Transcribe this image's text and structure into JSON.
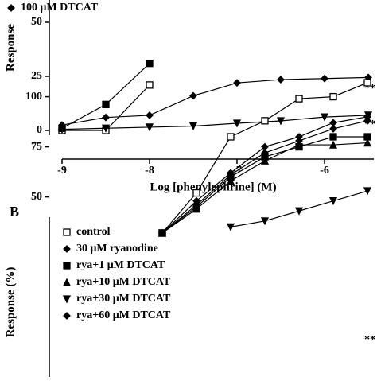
{
  "chart_data": [
    {
      "type": "line",
      "xlabel": "Log [phenylephrine] (M)",
      "ylabel": "Response",
      "x": [
        -9,
        -8.5,
        -8,
        -7.5,
        -7,
        -6.5,
        -6,
        -5.5
      ],
      "series": [
        {
          "color": "#000000",
          "marker": "open-square",
          "values": [
            0,
            0,
            21,
            null,
            null,
            null,
            null,
            null
          ]
        },
        {
          "color": "#000000",
          "marker": "square",
          "values": [
            1,
            12,
            31,
            null,
            null,
            null,
            null,
            null
          ]
        },
        {
          "name": "100 μM DTCAT",
          "color": "#000000",
          "marker": "diamond",
          "values": [
            2.5,
            6,
            7,
            16,
            22,
            23.5,
            24,
            24.5
          ]
        },
        {
          "color": "#000000",
          "marker": "triangle-down",
          "values": [
            0.5,
            1,
            1.5,
            2,
            3.3,
            4.4,
            6.2,
            7
          ]
        }
      ],
      "xlim": [
        -9,
        -5.5
      ],
      "ylim": [
        0,
        60
      ],
      "xticks": [
        -9,
        -8,
        -7,
        -6
      ],
      "yticks": [
        0,
        25,
        50
      ],
      "annotations": [
        "**",
        "**"
      ]
    },
    {
      "type": "line",
      "panel_label": "B",
      "ylabel": "Response (%)",
      "x": [
        -8.5,
        -8,
        -7.5,
        -7,
        -6.5,
        -6,
        -5.5
      ],
      "series": [
        {
          "name": "control",
          "color": "#000000",
          "marker": "open-square",
          "values": [
            32,
            52,
            80,
            88,
            99,
            100,
            107
          ]
        },
        {
          "name": "30 μM ryanodine",
          "color": "#000000",
          "marker": "diamond",
          "values": [
            32,
            48,
            62,
            75,
            80,
            87,
            90
          ]
        },
        {
          "name": "rya+1 μM DTCAT",
          "color": "#000000",
          "marker": "square",
          "values": [
            32,
            45,
            60,
            70,
            75,
            80,
            80
          ]
        },
        {
          "name": "rya+10 μM DTCAT",
          "color": "#000000",
          "marker": "triangle-up",
          "values": [
            32,
            44,
            58,
            68,
            76,
            76,
            77
          ]
        },
        {
          "name": "rya+30 μM DTCAT",
          "color": "#000000",
          "marker": "triangle-down",
          "values": [
            null,
            null,
            35,
            38,
            43,
            48,
            53
          ]
        },
        {
          "name": "rya+60 μM DTCAT",
          "color": "#000000",
          "marker": "diamond",
          "values": [
            32,
            46,
            61,
            72,
            78,
            84,
            88
          ]
        }
      ],
      "xlim": [
        -10,
        -5.5
      ],
      "ylim": [
        30,
        110
      ],
      "yticks": [
        50,
        75,
        100
      ],
      "annotations": [
        "**"
      ]
    }
  ]
}
